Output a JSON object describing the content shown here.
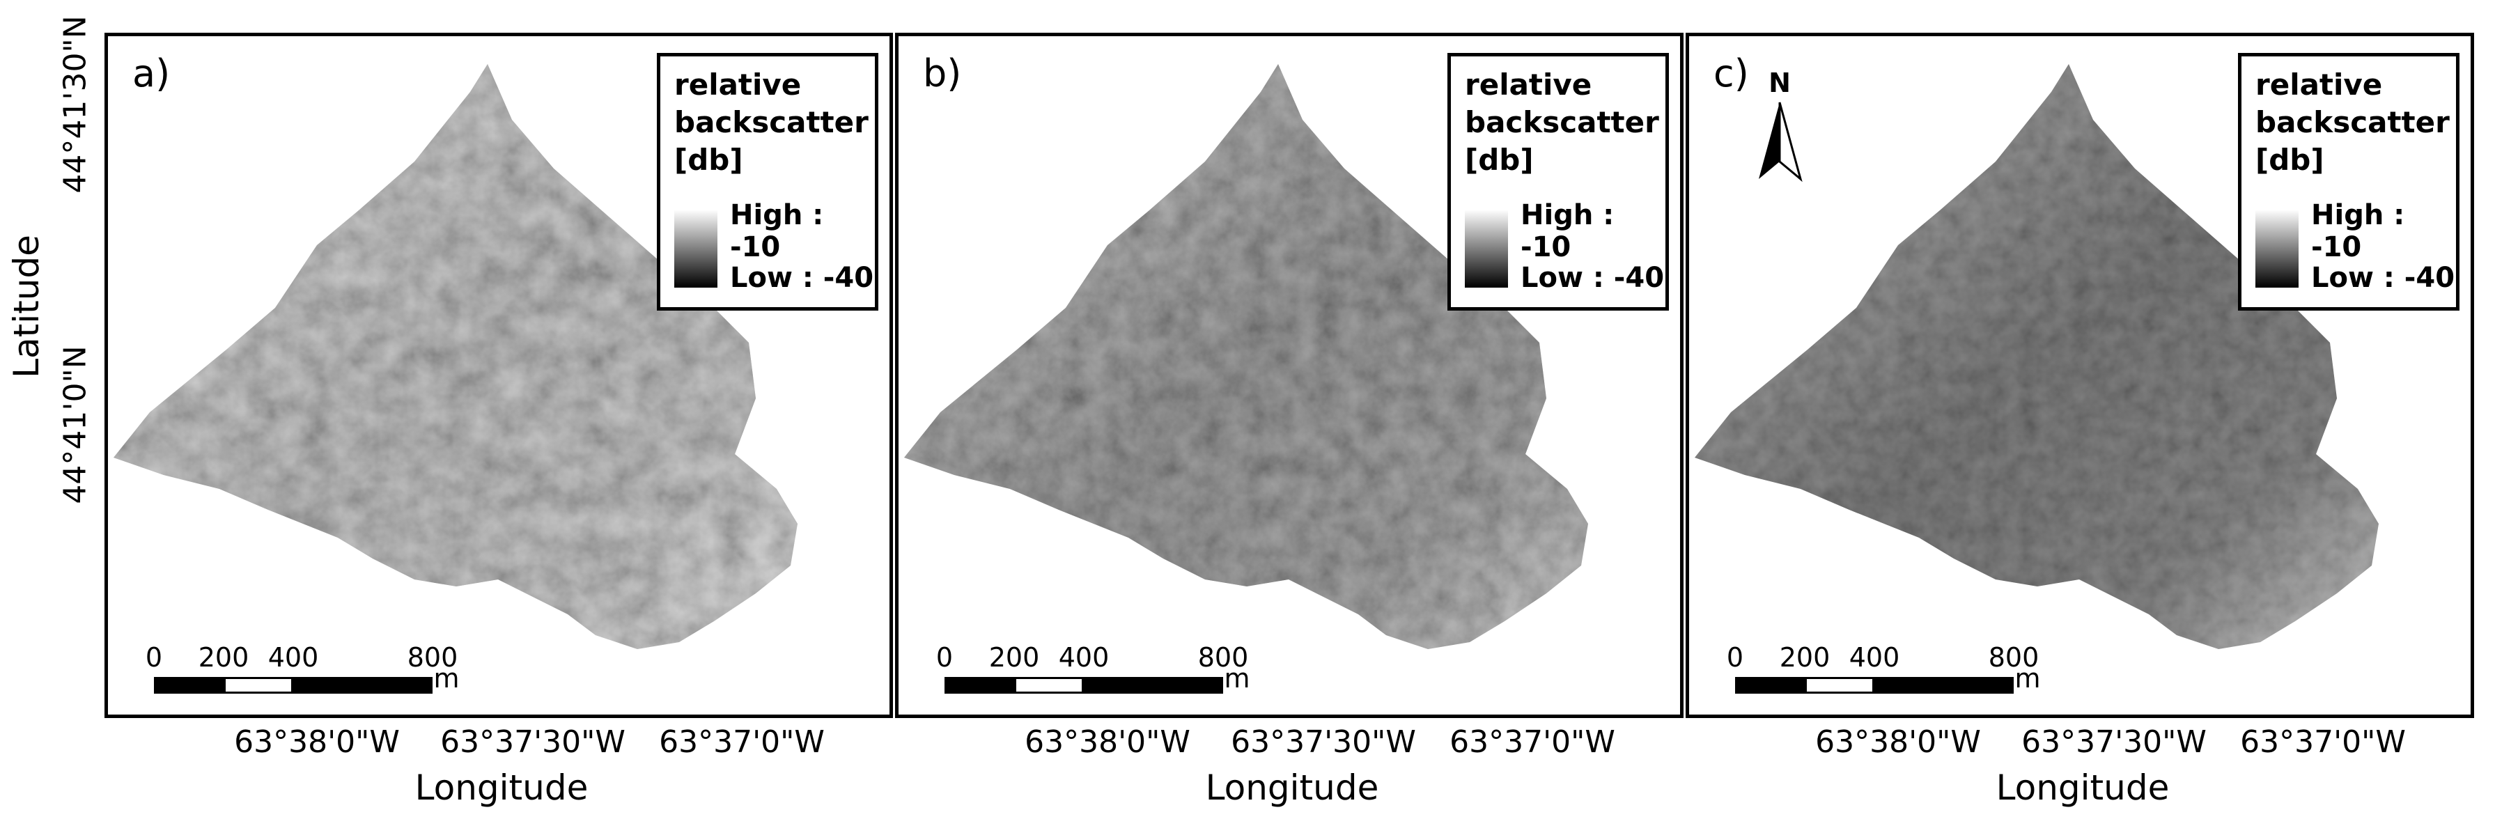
{
  "panels": [
    {
      "label": "a)",
      "legend_title": [
        "relative",
        "backscatter",
        "[db]"
      ],
      "legend_high": "High : -10",
      "legend_low": "Low : -40"
    },
    {
      "label": "b)",
      "legend_title": [
        "relative",
        "backscatter",
        "[db]"
      ],
      "legend_high": "High : -10",
      "legend_low": "Low : -40"
    },
    {
      "label": "c)",
      "legend_title": [
        "relative",
        "backscatter",
        "[db]"
      ],
      "legend_high": "High : -10",
      "legend_low": "Low : -40",
      "north_label": "N"
    }
  ],
  "scale_bar": {
    "labels": [
      "0",
      "200",
      "400",
      "800"
    ],
    "unit": "m"
  },
  "x_axis": {
    "label": "Longitude",
    "ticks": [
      "63°38'0\"W",
      "63°37'30\"W",
      "63°37'0\"W"
    ]
  },
  "y_axis": {
    "label": "Latitude",
    "ticks": [
      "44°41'30\"N",
      "44°41'0\"N"
    ]
  },
  "colors": {
    "frame": "#000000",
    "legend_high": "#ffffff",
    "legend_low": "#000000"
  },
  "icons": [
    "north-arrow-icon"
  ]
}
